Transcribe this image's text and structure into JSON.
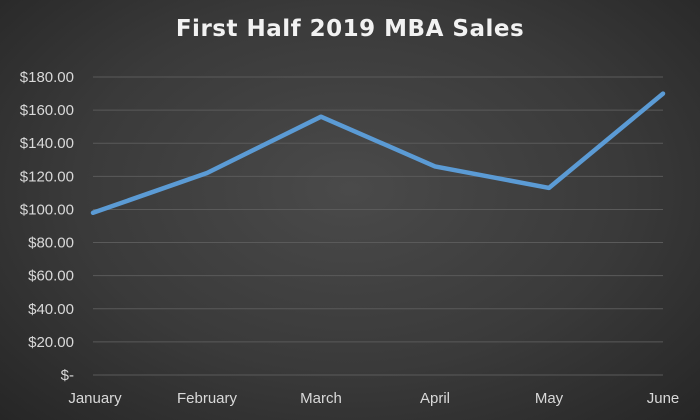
{
  "chart_data": {
    "type": "line",
    "title": "First Half 2019 MBA Sales",
    "categories": [
      "January",
      "February",
      "March",
      "April",
      "May",
      "June"
    ],
    "series": [
      {
        "values": [
          98,
          122,
          156,
          126,
          113,
          170
        ]
      }
    ],
    "ylim": [
      0,
      180
    ],
    "yticks": [
      0,
      20,
      40,
      60,
      80,
      100,
      120,
      140,
      160,
      180
    ],
    "ytick_labels": [
      "$-",
      "$20.00",
      "$40.00",
      "$60.00",
      "$80.00",
      "$100.00",
      "$120.00",
      "$140.00",
      "$160.00",
      "$180.00"
    ],
    "xlabel": "",
    "ylabel": "",
    "grid": true,
    "legend": "none",
    "colors": {
      "line": "#5b9bd5",
      "background": "#404040",
      "gridline": "#5a5a5a",
      "text": "#d9d9d9"
    }
  }
}
